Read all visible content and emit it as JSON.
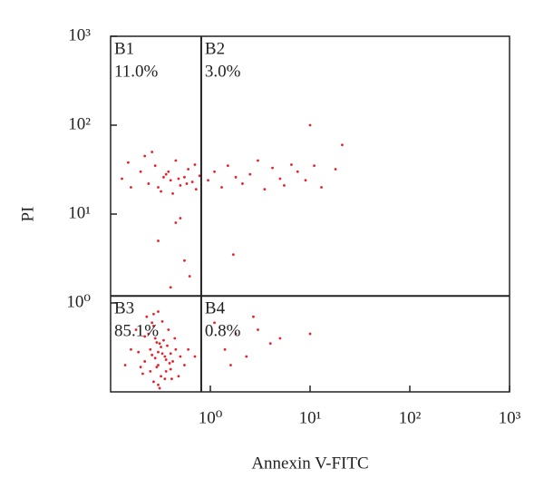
{
  "chart_data": {
    "type": "scatter",
    "x_label": "Annexin V-FITC",
    "y_label": "PI",
    "xscale": "log",
    "yscale": "log",
    "xlim": [
      0.1,
      1000
    ],
    "ylim": [
      0.1,
      1000
    ],
    "xticks": [
      {
        "value": 1,
        "label": "10⁰"
      },
      {
        "value": 10,
        "label": "10¹"
      },
      {
        "value": 100,
        "label": "10²"
      },
      {
        "value": 1000,
        "label": "10³"
      }
    ],
    "yticks": [
      {
        "value": 1,
        "label": "10⁰"
      },
      {
        "value": 10,
        "label": "10¹"
      },
      {
        "value": 100,
        "label": "10²"
      },
      {
        "value": 1000,
        "label": "10³"
      }
    ],
    "gates": {
      "x": 0.81,
      "y": 1.2
    },
    "quadrants": {
      "names": [
        "B1",
        "B2",
        "B3",
        "B4"
      ],
      "values": [
        11.0,
        3.0,
        85.1,
        0.8
      ],
      "value_labels": [
        "11.0%",
        "3.0%",
        "85.1%",
        "0.8%"
      ]
    },
    "series": [
      {
        "color": "#e8202a",
        "x": [
          0.3,
          0.25,
          0.35,
          0.4,
          0.28,
          0.22,
          0.32,
          0.45,
          0.38,
          0.27,
          0.31,
          0.19,
          0.42,
          0.36,
          0.26,
          0.33,
          0.29,
          0.24,
          0.5,
          0.37,
          0.3,
          0.21,
          0.34,
          0.41,
          0.28,
          0.16,
          0.55,
          0.23,
          0.39,
          0.3,
          0.27,
          0.35,
          0.44,
          0.2,
          0.32,
          0.26,
          0.6,
          0.18,
          0.3,
          0.36,
          0.25,
          0.48,
          0.29,
          0.33,
          0.14,
          0.4,
          0.22,
          0.31,
          0.7,
          0.27,
          0.13,
          0.16,
          0.2,
          0.24,
          0.28,
          0.32,
          0.36,
          0.4,
          0.45,
          0.5,
          0.55,
          0.6,
          0.66,
          0.72,
          0.78,
          0.15,
          0.22,
          0.3,
          0.38,
          0.48,
          0.58,
          0.7,
          0.26,
          0.42,
          0.34,
          0.95,
          1.1,
          1.3,
          1.5,
          1.8,
          2.1,
          2.5,
          3,
          3.5,
          4.2,
          5,
          5.5,
          6.5,
          7.5,
          9,
          11,
          13,
          18,
          21,
          10,
          0.45,
          0.55,
          0.3,
          0.62,
          0.4,
          0.5,
          1.1,
          1.4,
          1.8,
          2.3,
          3,
          4,
          5,
          1.6,
          2.7,
          10,
          1.7
        ],
        "values": [
          0.2,
          0.3,
          0.25,
          0.18,
          0.4,
          0.22,
          0.15,
          0.3,
          0.5,
          0.13,
          0.35,
          0.28,
          0.22,
          0.17,
          0.6,
          0.27,
          0.19,
          0.45,
          0.25,
          0.33,
          0.12,
          0.16,
          0.38,
          0.14,
          0.24,
          0.3,
          0.2,
          0.7,
          0.21,
          0.28,
          0.55,
          0.14,
          0.4,
          0.19,
          0.32,
          0.26,
          0.3,
          0.5,
          0.8,
          0.23,
          0.17,
          0.15,
          0.36,
          0.62,
          0.2,
          0.27,
          0.42,
          0.11,
          0.25,
          0.75,
          25,
          20,
          30,
          22,
          35,
          18,
          28,
          24,
          40,
          21,
          26,
          32,
          23,
          19,
          27,
          38,
          45,
          20,
          30,
          25,
          22,
          36,
          50,
          17,
          26,
          24,
          30,
          20,
          35,
          26,
          22,
          28,
          40,
          19,
          33,
          25,
          21,
          36,
          30,
          24,
          35,
          20,
          32,
          60,
          100,
          8,
          3,
          5,
          2,
          1.5,
          9,
          0.6,
          0.3,
          0.45,
          0.25,
          0.5,
          0.35,
          0.4,
          0.2,
          0.7,
          0.45,
          3.5
        ]
      }
    ]
  }
}
